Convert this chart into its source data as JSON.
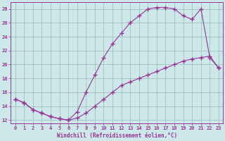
{
  "xlabel": "Windchill (Refroidissement éolien,°C)",
  "xlim": [
    -0.5,
    23.5
  ],
  "ylim": [
    11.5,
    29.0
  ],
  "xticks": [
    0,
    1,
    2,
    3,
    4,
    5,
    6,
    7,
    8,
    9,
    10,
    11,
    12,
    13,
    14,
    15,
    16,
    17,
    18,
    19,
    20,
    21,
    22,
    23
  ],
  "yticks": [
    12,
    14,
    16,
    18,
    20,
    22,
    24,
    26,
    28
  ],
  "bg_color": "#cce8e8",
  "grid_color": "#99bbbb",
  "line_color": "#993399",
  "line1_x": [
    0,
    1,
    2,
    3,
    4,
    5,
    6,
    7,
    8,
    9,
    10,
    11,
    12,
    13,
    14,
    15,
    16,
    17,
    18,
    19,
    20,
    21,
    22,
    23
  ],
  "line1_y": [
    15.0,
    14.5,
    13.5,
    13.0,
    12.5,
    12.2,
    12.0,
    13.2,
    16.0,
    18.5,
    21.0,
    23.0,
    24.5,
    26.0,
    27.0,
    28.0,
    28.2,
    28.2,
    28.0,
    27.0,
    26.5,
    28.0,
    21.0,
    19.5
  ],
  "line2_x": [
    0,
    1,
    2,
    3,
    4,
    5,
    6,
    7,
    8,
    9,
    10,
    11,
    12,
    13,
    14,
    15,
    16,
    17,
    18,
    19,
    20,
    21,
    22,
    23
  ],
  "line2_y": [
    15.0,
    14.5,
    13.5,
    13.0,
    12.5,
    12.2,
    12.0,
    12.3,
    13.0,
    14.0,
    15.0,
    16.0,
    17.0,
    17.5,
    18.0,
    18.5,
    19.0,
    19.5,
    20.0,
    20.5,
    20.8,
    21.0,
    21.2,
    19.5
  ]
}
